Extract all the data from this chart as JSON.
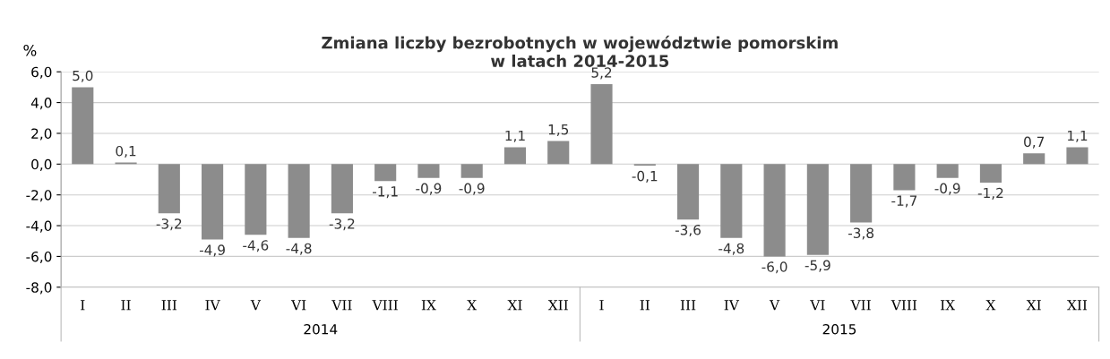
{
  "chart_data": {
    "type": "bar",
    "title": "Zmiana liczby bezrobotnych w województwie pomorskim\nw latach 2014-2015",
    "ylabel": "%",
    "categories": [
      "I",
      "II",
      "III",
      "IV",
      "V",
      "VI",
      "VII",
      "VIII",
      "IX",
      "X",
      "XI",
      "XII",
      "I",
      "II",
      "III",
      "IV",
      "V",
      "VI",
      "VII",
      "VIII",
      "IX",
      "X",
      "XI",
      "XII"
    ],
    "values": [
      5.0,
      0.1,
      -3.2,
      -4.9,
      -4.6,
      -4.8,
      -3.2,
      -1.1,
      -0.9,
      -0.9,
      1.1,
      1.5,
      5.2,
      -0.1,
      -3.6,
      -4.8,
      -6.0,
      -5.9,
      -3.8,
      -1.7,
      -0.9,
      -1.2,
      0.7,
      1.1
    ],
    "value_labels": [
      "5,0",
      "0,1",
      "-3,2",
      "-4,9",
      "-4,6",
      "-4,8",
      "-3,2",
      "-1,1",
      "-0,9",
      "-0,9",
      "1,1",
      "1,5",
      "5,2",
      "-0,1",
      "-3,6",
      "-4,8",
      "-6,0",
      "-5,9",
      "-3,8",
      "-1,7",
      "-0,9",
      "-1,2",
      "0,7",
      "1,1"
    ],
    "color": "#8c8c8c",
    "ylim": [
      -8,
      6
    ],
    "yticks": [
      {
        "value": -8,
        "label": "-8,0"
      },
      {
        "value": -6,
        "label": "-6,0"
      },
      {
        "value": -4,
        "label": "-4,0"
      },
      {
        "value": -2,
        "label": "-2,0"
      },
      {
        "value": 0,
        "label": "0,0"
      },
      {
        "value": 2,
        "label": "2,0"
      },
      {
        "value": 4,
        "label": "4,0"
      },
      {
        "value": 6,
        "label": "6,0"
      }
    ],
    "grid": "y",
    "annotations": [
      "2014",
      "2015"
    ]
  }
}
